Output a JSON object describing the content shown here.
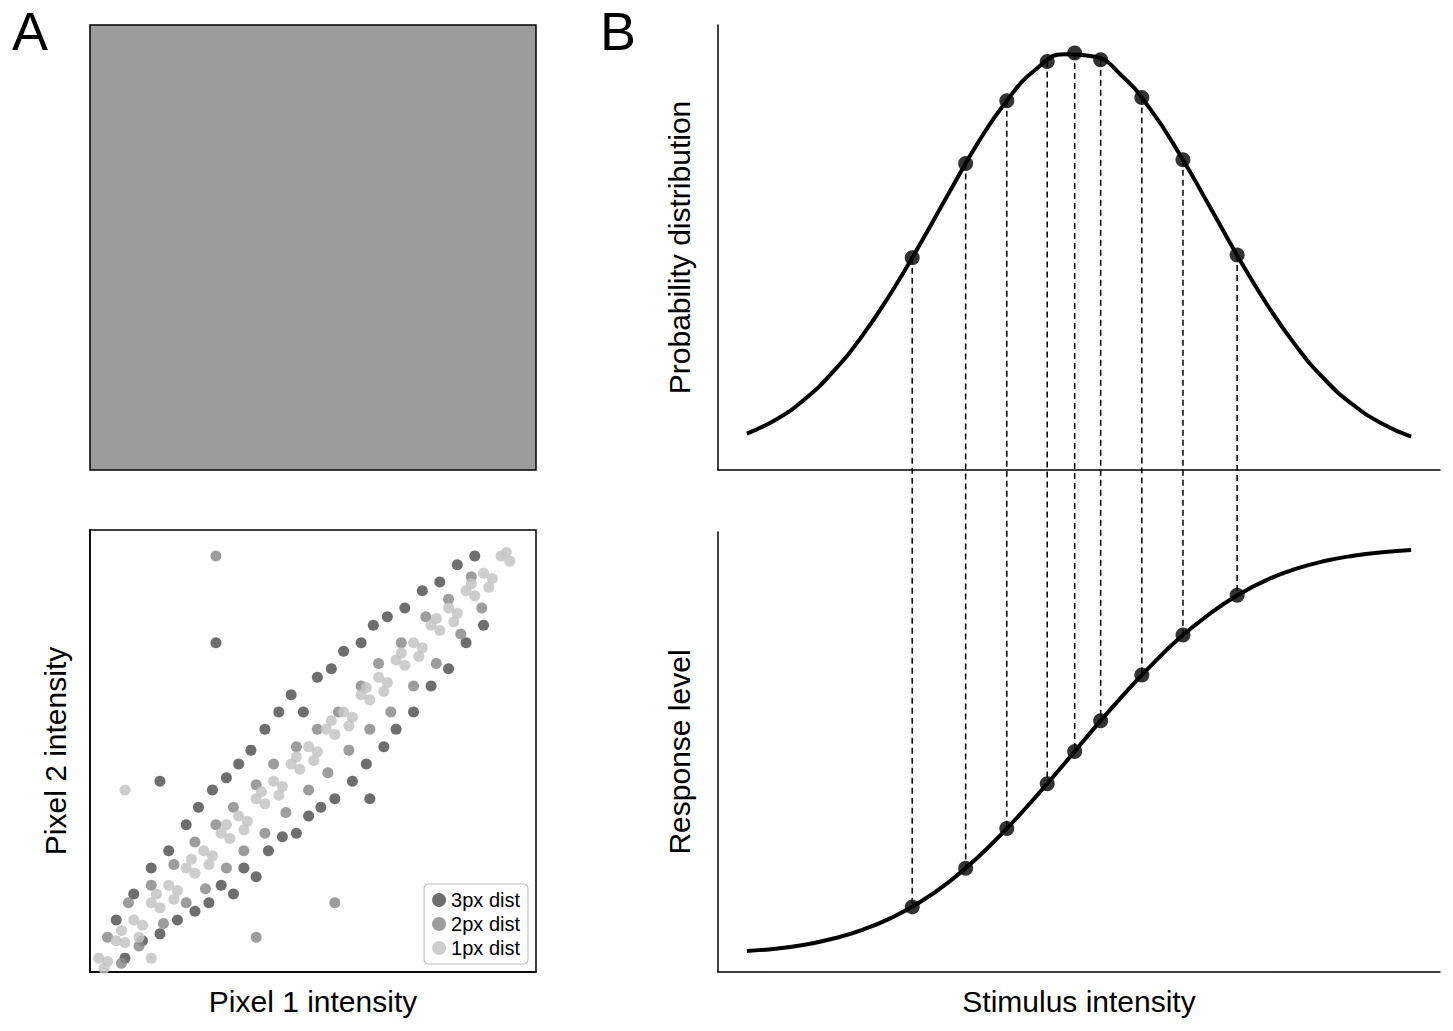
{
  "chart_data": [
    {
      "type": "image",
      "panel": "A"
    },
    {
      "type": "scatter",
      "x_label": "Pixel 1 intensity",
      "y_label": "Pixel 2 intensity",
      "xlim": [
        0,
        255
      ],
      "ylim": [
        0,
        255
      ],
      "tick_labels": false,
      "legend": "lower right",
      "marker": "circle",
      "series": [
        {
          "name": "3px dist",
          "color": "#555555",
          "values": [
            [
              15,
              30
            ],
            [
              20,
              8
            ],
            [
              25,
              45
            ],
            [
              30,
              18
            ],
            [
              35,
              60
            ],
            [
              40,
              22
            ],
            [
              45,
              70
            ],
            [
              50,
              30
            ],
            [
              55,
              85
            ],
            [
              60,
              35
            ],
            [
              62,
              95
            ],
            [
              68,
              40
            ],
            [
              70,
              105
            ],
            [
              75,
              50
            ],
            [
              78,
              112
            ],
            [
              82,
              45
            ],
            [
              85,
              120
            ],
            [
              88,
              60
            ],
            [
              92,
              128
            ],
            [
              95,
              55
            ],
            [
              100,
              140
            ],
            [
              102,
              70
            ],
            [
              108,
              150
            ],
            [
              110,
              78
            ],
            [
              115,
              160
            ],
            [
              118,
              80
            ],
            [
              122,
              150
            ],
            [
              125,
              90
            ],
            [
              130,
              170
            ],
            [
              132,
              95
            ],
            [
              138,
              175
            ],
            [
              140,
              100
            ],
            [
              145,
              185
            ],
            [
              150,
              110
            ],
            [
              155,
              190
            ],
            [
              158,
              120
            ],
            [
              162,
              200
            ],
            [
              168,
              130
            ],
            [
              170,
              205
            ],
            [
              175,
              140
            ],
            [
              180,
              210
            ],
            [
              185,
              150
            ],
            [
              190,
              220
            ],
            [
              195,
              165
            ],
            [
              200,
              225
            ],
            [
              205,
              175
            ],
            [
              210,
              235
            ],
            [
              215,
              190
            ],
            [
              220,
              240
            ],
            [
              225,
              200
            ],
            [
              72,
              190
            ],
            [
              160,
              100
            ],
            [
              40,
              110
            ]
          ]
        },
        {
          "name": "2px dist",
          "color": "#8c8c8c",
          "values": [
            [
              10,
              20
            ],
            [
              18,
              5
            ],
            [
              22,
              40
            ],
            [
              28,
              15
            ],
            [
              35,
              50
            ],
            [
              42,
              28
            ],
            [
              48,
              62
            ],
            [
              55,
              40
            ],
            [
              60,
              75
            ],
            [
              66,
              48
            ],
            [
              72,
              85
            ],
            [
              78,
              60
            ],
            [
              82,
              95
            ],
            [
              88,
              70
            ],
            [
              95,
              108
            ],
            [
              100,
              80
            ],
            [
              105,
              120
            ],
            [
              112,
              92
            ],
            [
              118,
              130
            ],
            [
              125,
              105
            ],
            [
              130,
              140
            ],
            [
              136,
              115
            ],
            [
              142,
              150
            ],
            [
              148,
              128
            ],
            [
              155,
              165
            ],
            [
              160,
              140
            ],
            [
              165,
              178
            ],
            [
              172,
              150
            ],
            [
              178,
              190
            ],
            [
              185,
              165
            ],
            [
              192,
              205
            ],
            [
              198,
              178
            ],
            [
              205,
              215
            ],
            [
              212,
              195
            ],
            [
              218,
              228
            ],
            [
              224,
              210
            ],
            [
              72,
              240
            ],
            [
              95,
              20
            ],
            [
              140,
              40
            ]
          ]
        },
        {
          "name": "1px dist",
          "color": "#c4c4c4",
          "values": [
            [
              5,
              8
            ],
            [
              10,
              6
            ],
            [
              15,
              18
            ],
            [
              20,
              17
            ],
            [
              25,
              30
            ],
            [
              30,
              27
            ],
            [
              35,
              40
            ],
            [
              40,
              37
            ],
            [
              45,
              50
            ],
            [
              50,
              47
            ],
            [
              55,
              60
            ],
            [
              60,
              57
            ],
            [
              65,
              70
            ],
            [
              70,
              67
            ],
            [
              75,
              80
            ],
            [
              80,
              77
            ],
            [
              85,
              90
            ],
            [
              90,
              87
            ],
            [
              95,
              100
            ],
            [
              100,
              97
            ],
            [
              105,
              110
            ],
            [
              110,
              107
            ],
            [
              115,
              120
            ],
            [
              120,
              117
            ],
            [
              125,
              130
            ],
            [
              130,
              127
            ],
            [
              135,
              140
            ],
            [
              140,
              137
            ],
            [
              145,
              150
            ],
            [
              150,
              147
            ],
            [
              155,
              160
            ],
            [
              160,
              157
            ],
            [
              165,
              170
            ],
            [
              170,
              167
            ],
            [
              175,
              180
            ],
            [
              180,
              177
            ],
            [
              185,
              190
            ],
            [
              190,
              187
            ],
            [
              195,
              200
            ],
            [
              200,
              197
            ],
            [
              205,
              210
            ],
            [
              210,
              207
            ],
            [
              215,
              220
            ],
            [
              220,
              217
            ],
            [
              225,
              230
            ],
            [
              230,
              227
            ],
            [
              235,
              240
            ],
            [
              240,
              237
            ],
            [
              8,
              2
            ],
            [
              18,
              24
            ],
            [
              28,
              20
            ],
            [
              38,
              45
            ],
            [
              48,
              42
            ],
            [
              58,
              65
            ],
            [
              68,
              62
            ],
            [
              78,
              85
            ],
            [
              88,
              82
            ],
            [
              98,
              104
            ],
            [
              108,
              102
            ],
            [
              118,
              124
            ],
            [
              128,
              122
            ],
            [
              138,
              145
            ],
            [
              148,
              142
            ],
            [
              158,
              164
            ],
            [
              168,
              162
            ],
            [
              178,
              184
            ],
            [
              188,
              182
            ],
            [
              198,
              204
            ],
            [
              208,
              202
            ],
            [
              218,
              224
            ],
            [
              228,
              222
            ],
            [
              238,
              242
            ],
            [
              20,
              105
            ],
            [
              35,
              8
            ]
          ]
        }
      ]
    },
    {
      "type": "line",
      "panel": "B",
      "y_label": "Probability distribution",
      "xlim": [
        0,
        100
      ],
      "ylim": [
        0,
        100
      ],
      "tick_labels": false,
      "color": "#000000",
      "series": [
        {
          "type": "line",
          "x": [
            4,
            8,
            12,
            16,
            20,
            24,
            28,
            32,
            36,
            40,
            44,
            48,
            52,
            56,
            60,
            64,
            68,
            72,
            76,
            80,
            84,
            88,
            92,
            96
          ],
          "values": [
            8.2,
            11.3,
            15.9,
            22.2,
            30.2,
            39.9,
            50.8,
            62.3,
            73.5,
            83.0,
            90.0,
            93.4,
            92.9,
            88.5,
            80.8,
            70.8,
            59.5,
            48.0,
            37.3,
            28.0,
            20.4,
            14.6,
            10.4,
            7.5
          ]
        },
        {
          "type": "scatter",
          "marker": "circle",
          "line_style": "dashed",
          "x": [
            26.9,
            34.3,
            40.0,
            45.6,
            49.4,
            53.0,
            58.7,
            64.4,
            71.9
          ],
          "values": [
            47.7,
            68.9,
            83.0,
            91.8,
            93.7,
            92.2,
            83.7,
            69.7,
            48.3
          ]
        }
      ]
    },
    {
      "type": "line",
      "x_label": "Stimulus intensity",
      "y_label": "Response level",
      "xlim": [
        0,
        100
      ],
      "ylim": [
        0,
        100
      ],
      "tick_labels": false,
      "color": "#000000",
      "series": [
        {
          "type": "line",
          "x": [
            4,
            8,
            12,
            16,
            20,
            24,
            28,
            32,
            36,
            40,
            44,
            48,
            52,
            56,
            60,
            64,
            68,
            72,
            76,
            80,
            84,
            88,
            92,
            96
          ],
          "values": [
            4.8,
            5.3,
            6.2,
            7.6,
            9.6,
            12.3,
            15.9,
            20.5,
            26.1,
            32.6,
            39.8,
            47.4,
            55.2,
            62.7,
            69.7,
            76.0,
            81.3,
            85.7,
            89.1,
            91.6,
            93.4,
            94.6,
            95.4,
            95.9
          ]
        },
        {
          "type": "scatter",
          "marker": "circle",
          "line_style": "dashed",
          "x": [
            26.9,
            34.3,
            40.0,
            45.6,
            49.4,
            53.0,
            58.7,
            64.4,
            71.9
          ],
          "values": [
            14.8,
            23.6,
            32.6,
            42.8,
            50.1,
            57.1,
            67.5,
            76.6,
            85.6
          ]
        }
      ]
    }
  ]
}
